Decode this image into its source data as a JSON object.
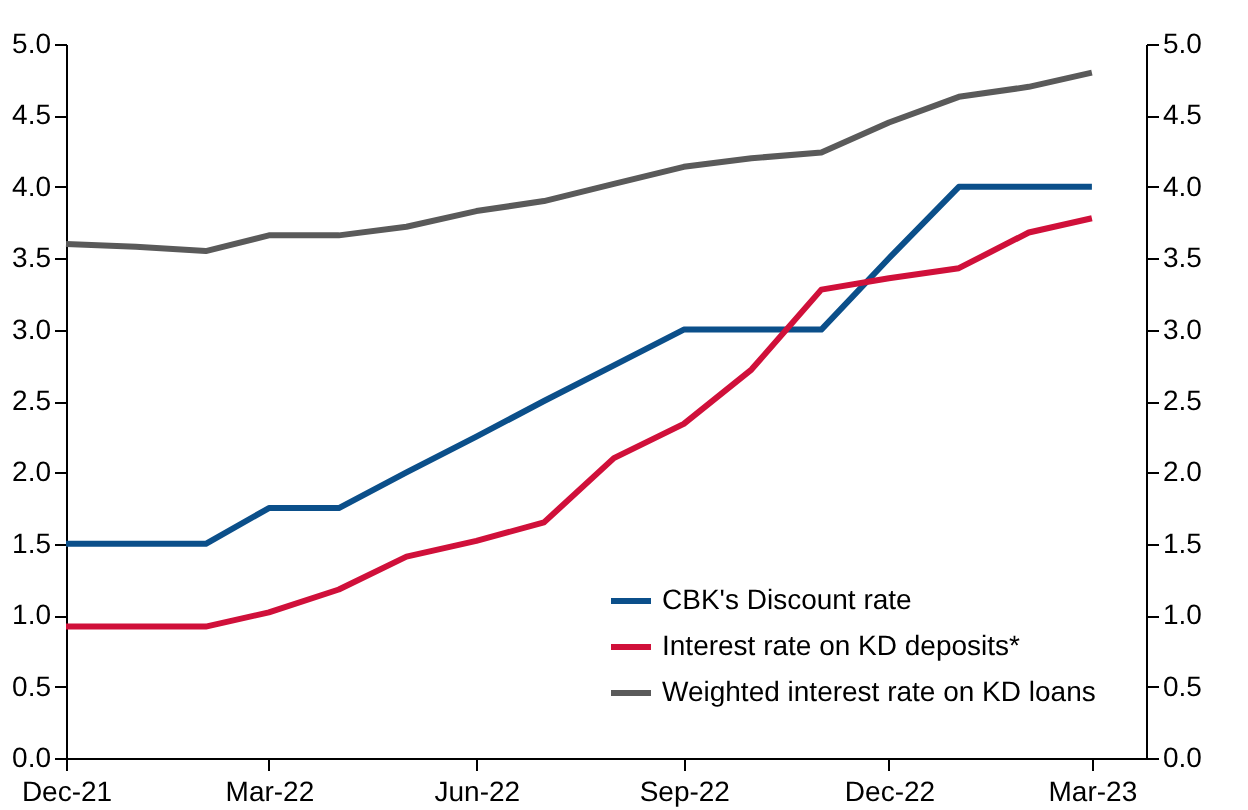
{
  "chart_data": {
    "type": "line",
    "x": [
      "2021-12",
      "2022-01",
      "2022-02",
      "2022-03",
      "2022-04",
      "2022-05",
      "2022-06",
      "2022-07",
      "2022-08",
      "2022-09",
      "2022-10",
      "2022-11",
      "2022-12",
      "2023-01",
      "2023-02",
      "2023-03"
    ],
    "series": [
      {
        "name": "CBK's Discount rate",
        "color": "#0b4f8a",
        "values": [
          1.5,
          1.5,
          1.5,
          1.75,
          1.75,
          2.0,
          2.25,
          2.5,
          2.75,
          3.0,
          3.0,
          3.0,
          3.5,
          4.0,
          4.0,
          4.0
        ]
      },
      {
        "name": "Interest rate on KD deposits*",
        "color": "#d0103a",
        "values": [
          0.92,
          0.92,
          0.92,
          1.02,
          1.18,
          1.41,
          1.52,
          1.65,
          2.1,
          2.34,
          2.72,
          3.28,
          3.36,
          3.43,
          3.68,
          3.78
        ]
      },
      {
        "name": "Weighted interest rate on KD loans",
        "color": "#5a5a5a",
        "values": [
          3.6,
          3.58,
          3.55,
          3.66,
          3.66,
          3.72,
          3.83,
          3.9,
          4.02,
          4.14,
          4.2,
          4.24,
          4.45,
          4.63,
          4.7,
          4.8
        ]
      }
    ],
    "xlim": [
      "2021-12",
      "2023-03-25"
    ],
    "xticks": [
      {
        "value": "2021-12",
        "label": "Dec-21"
      },
      {
        "value": "2022-03",
        "label": "Mar-22"
      },
      {
        "value": "2022-06",
        "label": "Jun-22"
      },
      {
        "value": "2022-09",
        "label": "Sep-22"
      },
      {
        "value": "2022-12",
        "label": "Dec-22"
      },
      {
        "value": "2023-03",
        "label": "Mar-23"
      }
    ],
    "ylim": [
      0,
      5.0
    ],
    "yticks": [
      {
        "value": 0,
        "label": "0.0"
      },
      {
        "value": 0.5,
        "label": "0.5"
      },
      {
        "value": 1,
        "label": "1.0"
      },
      {
        "value": 1.5,
        "label": "1.5"
      },
      {
        "value": 2,
        "label": "2.0"
      },
      {
        "value": 2.5,
        "label": "2.5"
      },
      {
        "value": 3,
        "label": "3.0"
      },
      {
        "value": 3.5,
        "label": "3.5"
      },
      {
        "value": 4,
        "label": "4.0"
      },
      {
        "value": 4.5,
        "label": "4.5"
      },
      {
        "value": 5,
        "label": "5.0"
      }
    ],
    "y2lim": [
      0,
      5.0
    ],
    "y2ticks": [
      {
        "value": 0,
        "label": "0.0"
      },
      {
        "value": 0.5,
        "label": "0.5"
      },
      {
        "value": 1,
        "label": "1.0"
      },
      {
        "value": 1.5,
        "label": "1.5"
      },
      {
        "value": 2,
        "label": "2.0"
      },
      {
        "value": 2.5,
        "label": "2.5"
      },
      {
        "value": 3,
        "label": "3.0"
      },
      {
        "value": 3.5,
        "label": "3.5"
      },
      {
        "value": 4,
        "label": "4.0"
      },
      {
        "value": 4.5,
        "label": "4.5"
      },
      {
        "value": 5,
        "label": "5.0"
      }
    ],
    "grid": false,
    "legend": "bottom right",
    "marker": "none",
    "line_style": "solid"
  }
}
